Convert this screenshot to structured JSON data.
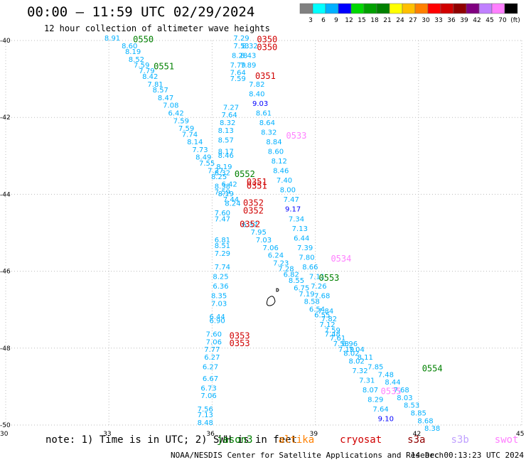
{
  "title": "00:00 – 11:59 UTC 02/29/2024",
  "subtitle": "12 hour collection of altimeter wave heights",
  "colorbar": {
    "ticks": [
      "3",
      "6",
      "9",
      "12",
      "15",
      "18",
      "21",
      "24",
      "27",
      "30",
      "33",
      "36",
      "39",
      "42",
      "45",
      "70",
      "(ft)"
    ],
    "colors": [
      "#808080",
      "#00ffff",
      "#00b0ff",
      "#0000ff",
      "#00d800",
      "#00a000",
      "#008000",
      "#ffff00",
      "#ffc000",
      "#ff8000",
      "#ff0000",
      "#d00000",
      "#900000",
      "#800080",
      "#c080ff",
      "#ff80ff",
      "#000000"
    ]
  },
  "note": {
    "prefix": "note: 1) Time is in UTC; 2) SWH is in feet",
    "satellites": [
      {
        "name": "jason3",
        "color": "#008000"
      },
      {
        "name": "altika",
        "color": "#ff8000"
      },
      {
        "name": "cryosat",
        "color": "#d00000"
      },
      {
        "name": "s3a",
        "color": "#900000"
      },
      {
        "name": "s3b",
        "color": "#c0a0ff"
      },
      {
        "name": "swot",
        "color": "#ff80ff"
      }
    ]
  },
  "footer": {
    "credit": "NOAA/NESDIS Center for Satellite Applications and Research",
    "generated": "14 Dec 00:13:23 UTC 2024"
  },
  "chart_data": {
    "type": "scatter",
    "xlim": [
      30,
      45
    ],
    "ylim": [
      -50,
      -40
    ],
    "x_ticks": [
      "30",
      "33",
      "36",
      "39",
      "42",
      "45"
    ],
    "y_ticks": [
      "-40",
      "-42",
      "-44",
      "-46",
      "-48",
      "-50"
    ],
    "grid": true,
    "wave_heights": [
      {
        "lon": 33.1,
        "lat": -40.0,
        "v": "8.91",
        "c": "#00b0ff"
      },
      {
        "lon": 33.6,
        "lat": -40.2,
        "v": "8.60",
        "c": "#00b0ff"
      },
      {
        "lon": 33.7,
        "lat": -40.35,
        "v": "8.19",
        "c": "#00b0ff"
      },
      {
        "lon": 33.8,
        "lat": -40.55,
        "v": "8.52",
        "c": "#00b0ff"
      },
      {
        "lon": 33.95,
        "lat": -40.7,
        "v": "7.59",
        "c": "#00b0ff"
      },
      {
        "lon": 34.1,
        "lat": -40.85,
        "v": "7.79",
        "c": "#00b0ff"
      },
      {
        "lon": 34.2,
        "lat": -41.0,
        "v": "8.42",
        "c": "#00b0ff"
      },
      {
        "lon": 34.35,
        "lat": -41.2,
        "v": "7.81",
        "c": "#00b0ff"
      },
      {
        "lon": 34.5,
        "lat": -41.35,
        "v": "8.57",
        "c": "#00b0ff"
      },
      {
        "lon": 34.65,
        "lat": -41.55,
        "v": "8.47",
        "c": "#00b0ff"
      },
      {
        "lon": 34.8,
        "lat": -41.75,
        "v": "7.08",
        "c": "#00b0ff"
      },
      {
        "lon": 34.95,
        "lat": -41.95,
        "v": "6.42",
        "c": "#00b0ff"
      },
      {
        "lon": 35.1,
        "lat": -42.15,
        "v": "7.59",
        "c": "#00b0ff"
      },
      {
        "lon": 35.25,
        "lat": -42.35,
        "v": "7.59",
        "c": "#00b0ff"
      },
      {
        "lon": 35.35,
        "lat": -42.5,
        "v": "7.74",
        "c": "#00b0ff"
      },
      {
        "lon": 35.5,
        "lat": -42.7,
        "v": "8.14",
        "c": "#00b0ff"
      },
      {
        "lon": 35.65,
        "lat": -42.9,
        "v": "7.73",
        "c": "#00b0ff"
      },
      {
        "lon": 35.75,
        "lat": -43.1,
        "v": "8.49",
        "c": "#00b0ff"
      },
      {
        "lon": 35.85,
        "lat": -43.25,
        "v": "7.55",
        "c": "#00b0ff"
      },
      {
        "lon": 36.1,
        "lat": -43.45,
        "v": "7.27",
        "c": "#00b0ff"
      },
      {
        "lon": 36.2,
        "lat": -43.6,
        "v": "8.25",
        "c": "#00b0ff"
      },
      {
        "lon": 36.5,
        "lat": -43.8,
        "v": "6.42",
        "c": "#00b0ff"
      },
      {
        "lon": 36.55,
        "lat": -44.2,
        "v": "7.44",
        "c": "#00b0ff"
      },
      {
        "lon": 36.6,
        "lat": -44.3,
        "v": "8.24",
        "c": "#00b0ff"
      },
      {
        "lon": 37.1,
        "lat": -44.85,
        "v": "6.37",
        "c": "#00b0ff"
      },
      {
        "lon": 37.35,
        "lat": -45.05,
        "v": "7.95",
        "c": "#00b0ff"
      },
      {
        "lon": 37.5,
        "lat": -45.25,
        "v": "7.03",
        "c": "#00b0ff"
      },
      {
        "lon": 37.7,
        "lat": -45.45,
        "v": "7.06",
        "c": "#00b0ff"
      },
      {
        "lon": 37.85,
        "lat": -45.65,
        "v": "6.24",
        "c": "#00b0ff"
      },
      {
        "lon": 38.0,
        "lat": -45.85,
        "v": "7.23",
        "c": "#00b0ff"
      },
      {
        "lon": 38.15,
        "lat": -46.0,
        "v": "7.28",
        "c": "#00b0ff"
      },
      {
        "lon": 38.3,
        "lat": -46.15,
        "v": "6.82",
        "c": "#00b0ff"
      },
      {
        "lon": 38.45,
        "lat": -46.3,
        "v": "8.55",
        "c": "#00b0ff"
      },
      {
        "lon": 38.6,
        "lat": -46.5,
        "v": "6.75",
        "c": "#00b0ff"
      },
      {
        "lon": 38.75,
        "lat": -46.65,
        "v": "7.19",
        "c": "#00b0ff"
      },
      {
        "lon": 38.9,
        "lat": -46.85,
        "v": "8.58",
        "c": "#00b0ff"
      },
      {
        "lon": 39.05,
        "lat": -47.05,
        "v": "6.54",
        "c": "#00b0ff"
      },
      {
        "lon": 39.2,
        "lat": -47.2,
        "v": "6.55",
        "c": "#00b0ff"
      },
      {
        "lon": 39.35,
        "lat": -47.45,
        "v": "7.12",
        "c": "#00b0ff"
      },
      {
        "lon": 39.5,
        "lat": -47.6,
        "v": "7.59",
        "c": "#00b0ff"
      },
      {
        "lon": 39.65,
        "lat": -47.8,
        "v": "7.61",
        "c": "#00b0ff"
      },
      {
        "lon": 39.75,
        "lat": -47.95,
        "v": "7.58",
        "c": "#00b0ff"
      },
      {
        "lon": 39.9,
        "lat": -48.1,
        "v": "7.19",
        "c": "#00b0ff"
      },
      {
        "lon": 40.05,
        "lat": -48.2,
        "v": "8.02",
        "c": "#00b0ff"
      },
      {
        "lon": 40.2,
        "lat": -48.4,
        "v": "8.02",
        "c": "#00b0ff"
      },
      {
        "lon": 40.3,
        "lat": -48.65,
        "v": "7.32",
        "c": "#00b0ff"
      },
      {
        "lon": 40.5,
        "lat": -48.9,
        "v": "7.31",
        "c": "#00b0ff"
      },
      {
        "lon": 40.6,
        "lat": -49.15,
        "v": "8.07",
        "c": "#00b0ff"
      },
      {
        "lon": 40.75,
        "lat": -49.4,
        "v": "8.29",
        "c": "#00b0ff"
      },
      {
        "lon": 40.9,
        "lat": -49.65,
        "v": "7.64",
        "c": "#00b0ff"
      },
      {
        "lon": 41.05,
        "lat": -49.9,
        "v": "9.10",
        "c": "#0000ff"
      },
      {
        "lon": 40.0,
        "lat": -47.95,
        "v": "6.96",
        "c": "#00b0ff"
      },
      {
        "lon": 40.2,
        "lat": -48.1,
        "v": "7.04",
        "c": "#00b0ff"
      },
      {
        "lon": 40.45,
        "lat": -48.3,
        "v": "8.11",
        "c": "#00b0ff"
      },
      {
        "lon": 40.75,
        "lat": -48.55,
        "v": "7.85",
        "c": "#00b0ff"
      },
      {
        "lon": 41.05,
        "lat": -48.75,
        "v": "7.48",
        "c": "#00b0ff"
      },
      {
        "lon": 41.25,
        "lat": -48.95,
        "v": "8.44",
        "c": "#00b0ff"
      },
      {
        "lon": 41.5,
        "lat": -49.15,
        "v": "7.68",
        "c": "#00b0ff"
      },
      {
        "lon": 41.6,
        "lat": -49.35,
        "v": "8.03",
        "c": "#00b0ff"
      },
      {
        "lon": 41.8,
        "lat": -49.55,
        "v": "8.53",
        "c": "#00b0ff"
      },
      {
        "lon": 42.0,
        "lat": -49.75,
        "v": "8.85",
        "c": "#00b0ff"
      },
      {
        "lon": 42.2,
        "lat": -49.95,
        "v": "8.68",
        "c": "#00b0ff"
      },
      {
        "lon": 42.4,
        "lat": -50.15,
        "v": "8.38",
        "c": "#00b0ff"
      },
      {
        "lon": 36.85,
        "lat": -40.0,
        "v": "7.29",
        "c": "#00b0ff"
      },
      {
        "lon": 36.85,
        "lat": -40.2,
        "v": "7.53",
        "c": "#00b0ff"
      },
      {
        "lon": 37.1,
        "lat": -40.2,
        "v": "8.32",
        "c": "#00b0ff"
      },
      {
        "lon": 36.8,
        "lat": -40.45,
        "v": "8.28",
        "c": "#00b0ff"
      },
      {
        "lon": 37.05,
        "lat": -40.45,
        "v": "8.43",
        "c": "#00b0ff"
      },
      {
        "lon": 36.75,
        "lat": -40.7,
        "v": "7.79",
        "c": "#00b0ff"
      },
      {
        "lon": 37.05,
        "lat": -40.7,
        "v": "7.89",
        "c": "#00b0ff"
      },
      {
        "lon": 36.75,
        "lat": -40.9,
        "v": "7.64",
        "c": "#00b0ff"
      },
      {
        "lon": 36.75,
        "lat": -41.05,
        "v": "7.59",
        "c": "#00b0ff"
      },
      {
        "lon": 37.3,
        "lat": -41.2,
        "v": "7.82",
        "c": "#00b0ff"
      },
      {
        "lon": 37.3,
        "lat": -41.45,
        "v": "8.40",
        "c": "#00b0ff"
      },
      {
        "lon": 37.4,
        "lat": -41.7,
        "v": "9.03",
        "c": "#0000ff"
      },
      {
        "lon": 37.5,
        "lat": -41.95,
        "v": "8.61",
        "c": "#00b0ff"
      },
      {
        "lon": 37.6,
        "lat": -42.2,
        "v": "8.64",
        "c": "#00b0ff"
      },
      {
        "lon": 37.65,
        "lat": -42.45,
        "v": "8.32",
        "c": "#00b0ff"
      },
      {
        "lon": 37.8,
        "lat": -42.7,
        "v": "8.84",
        "c": "#00b0ff"
      },
      {
        "lon": 37.85,
        "lat": -42.95,
        "v": "8.60",
        "c": "#00b0ff"
      },
      {
        "lon": 37.95,
        "lat": -43.2,
        "v": "8.12",
        "c": "#00b0ff"
      },
      {
        "lon": 38.0,
        "lat": -43.45,
        "v": "8.46",
        "c": "#00b0ff"
      },
      {
        "lon": 38.1,
        "lat": -43.7,
        "v": "7.40",
        "c": "#00b0ff"
      },
      {
        "lon": 38.2,
        "lat": -43.95,
        "v": "8.00",
        "c": "#00b0ff"
      },
      {
        "lon": 38.3,
        "lat": -44.2,
        "v": "7.47",
        "c": "#00b0ff"
      },
      {
        "lon": 38.35,
        "lat": -44.45,
        "v": "9.17",
        "c": "#0000ff"
      },
      {
        "lon": 38.45,
        "lat": -44.7,
        "v": "7.34",
        "c": "#00b0ff"
      },
      {
        "lon": 38.55,
        "lat": -44.95,
        "v": "7.13",
        "c": "#00b0ff"
      },
      {
        "lon": 38.6,
        "lat": -45.2,
        "v": "6.44",
        "c": "#00b0ff"
      },
      {
        "lon": 38.7,
        "lat": -45.45,
        "v": "7.39",
        "c": "#00b0ff"
      },
      {
        "lon": 38.75,
        "lat": -45.7,
        "v": "7.80",
        "c": "#00b0ff"
      },
      {
        "lon": 38.85,
        "lat": -45.95,
        "v": "8.66",
        "c": "#00b0ff"
      },
      {
        "lon": 39.05,
        "lat": -46.2,
        "v": "7.11",
        "c": "#00b0ff"
      },
      {
        "lon": 39.1,
        "lat": -46.45,
        "v": "7.26",
        "c": "#00b0ff"
      },
      {
        "lon": 39.2,
        "lat": -46.7,
        "v": "7.68",
        "c": "#00b0ff"
      },
      {
        "lon": 39.3,
        "lat": -47.1,
        "v": "7.84",
        "c": "#00b0ff"
      },
      {
        "lon": 39.4,
        "lat": -47.3,
        "v": "7.82",
        "c": "#00b0ff"
      },
      {
        "lon": 39.5,
        "lat": -47.7,
        "v": "7.48",
        "c": "#00b0ff"
      },
      {
        "lon": 36.5,
        "lat": -42.0,
        "v": "7.64",
        "c": "#00b0ff"
      },
      {
        "lon": 36.55,
        "lat": -41.8,
        "v": "7.27",
        "c": "#00b0ff"
      },
      {
        "lon": 36.45,
        "lat": -42.2,
        "v": "8.32",
        "c": "#00b0ff"
      },
      {
        "lon": 36.4,
        "lat": -42.4,
        "v": "8.13",
        "c": "#00b0ff"
      },
      {
        "lon": 36.4,
        "lat": -42.65,
        "v": "8.57",
        "c": "#00b0ff"
      },
      {
        "lon": 36.4,
        "lat": -42.95,
        "v": "8.17",
        "c": "#00b0ff"
      },
      {
        "lon": 36.4,
        "lat": -43.05,
        "v": "8.46",
        "c": "#00b0ff"
      },
      {
        "lon": 36.35,
        "lat": -43.35,
        "v": "8.19",
        "c": "#00b0ff"
      },
      {
        "lon": 36.3,
        "lat": -43.5,
        "v": "8.32",
        "c": "#00b0ff"
      },
      {
        "lon": 36.3,
        "lat": -43.85,
        "v": "8.38",
        "c": "#00b0ff"
      },
      {
        "lon": 36.3,
        "lat": -44.0,
        "v": "7.59",
        "c": "#00b0ff"
      },
      {
        "lon": 36.4,
        "lat": -44.05,
        "v": "8.19",
        "c": "#00b0ff"
      },
      {
        "lon": 36.3,
        "lat": -44.55,
        "v": "7.60",
        "c": "#00b0ff"
      },
      {
        "lon": 36.3,
        "lat": -44.7,
        "v": "7.47",
        "c": "#00b0ff"
      },
      {
        "lon": 36.3,
        "lat": -45.25,
        "v": "6.81",
        "c": "#00b0ff"
      },
      {
        "lon": 36.3,
        "lat": -45.4,
        "v": "8.51",
        "c": "#00b0ff"
      },
      {
        "lon": 36.3,
        "lat": -45.6,
        "v": "7.29",
        "c": "#00b0ff"
      },
      {
        "lon": 36.3,
        "lat": -45.95,
        "v": "7.74",
        "c": "#00b0ff"
      },
      {
        "lon": 36.25,
        "lat": -46.2,
        "v": "8.25",
        "c": "#00b0ff"
      },
      {
        "lon": 36.25,
        "lat": -46.45,
        "v": "6.36",
        "c": "#00b0ff"
      },
      {
        "lon": 36.2,
        "lat": -46.7,
        "v": "8.35",
        "c": "#00b0ff"
      },
      {
        "lon": 36.2,
        "lat": -46.9,
        "v": "7.03",
        "c": "#00b0ff"
      },
      {
        "lon": 36.15,
        "lat": -47.25,
        "v": "6.44",
        "c": "#00b0ff"
      },
      {
        "lon": 36.15,
        "lat": -47.35,
        "v": "6.90",
        "c": "#00b0ff"
      },
      {
        "lon": 36.05,
        "lat": -47.7,
        "v": "7.60",
        "c": "#00b0ff"
      },
      {
        "lon": 36.05,
        "lat": -47.9,
        "v": "7.06",
        "c": "#00b0ff"
      },
      {
        "lon": 36.0,
        "lat": -48.1,
        "v": "7.77",
        "c": "#00b0ff"
      },
      {
        "lon": 36.0,
        "lat": -48.3,
        "v": "6.27",
        "c": "#00b0ff"
      },
      {
        "lon": 35.95,
        "lat": -48.55,
        "v": "6.27",
        "c": "#00b0ff"
      },
      {
        "lon": 35.95,
        "lat": -48.85,
        "v": "6.67",
        "c": "#00b0ff"
      },
      {
        "lon": 35.9,
        "lat": -49.1,
        "v": "6.73",
        "c": "#00b0ff"
      },
      {
        "lon": 35.9,
        "lat": -49.3,
        "v": "7.06",
        "c": "#00b0ff"
      },
      {
        "lon": 35.8,
        "lat": -49.65,
        "v": "7.56",
        "c": "#00b0ff"
      },
      {
        "lon": 35.8,
        "lat": -49.8,
        "v": "7.13",
        "c": "#00b0ff"
      },
      {
        "lon": 35.8,
        "lat": -50.0,
        "v": "8.48",
        "c": "#00b0ff"
      }
    ],
    "time_labels": [
      {
        "lon": 34.0,
        "lat": -40.05,
        "v": "0550",
        "c": "#008000"
      },
      {
        "lon": 34.6,
        "lat": -40.75,
        "v": "0551",
        "c": "#008000"
      },
      {
        "lon": 37.6,
        "lat": -40.05,
        "v": "0350",
        "c": "#d00000"
      },
      {
        "lon": 37.6,
        "lat": -40.25,
        "v": "0350",
        "c": "#d00000"
      },
      {
        "lon": 37.55,
        "lat": -41.0,
        "v": "0351",
        "c": "#d00000"
      },
      {
        "lon": 38.45,
        "lat": -42.55,
        "v": "0533",
        "c": "#ff80ff"
      },
      {
        "lon": 36.95,
        "lat": -43.55,
        "v": "0552",
        "c": "#008000"
      },
      {
        "lon": 37.3,
        "lat": -43.75,
        "v": "0351",
        "c": "#d00000"
      },
      {
        "lon": 37.3,
        "lat": -43.85,
        "v": "0351",
        "c": "#d00000"
      },
      {
        "lon": 37.2,
        "lat": -44.3,
        "v": "0352",
        "c": "#d00000"
      },
      {
        "lon": 37.2,
        "lat": -44.5,
        "v": "0352",
        "c": "#d00000"
      },
      {
        "lon": 37.1,
        "lat": -44.85,
        "v": "0352",
        "c": "#d00000"
      },
      {
        "lon": 39.75,
        "lat": -45.75,
        "v": "0534",
        "c": "#ff80ff"
      },
      {
        "lon": 39.4,
        "lat": -46.25,
        "v": "0553",
        "c": "#008000"
      },
      {
        "lon": 36.8,
        "lat": -47.75,
        "v": "0353",
        "c": "#d00000"
      },
      {
        "lon": 36.8,
        "lat": -47.95,
        "v": "0353",
        "c": "#d00000"
      },
      {
        "lon": 42.4,
        "lat": -48.6,
        "v": "0554",
        "c": "#008000"
      },
      {
        "lon": 41.2,
        "lat": -49.2,
        "v": "0535",
        "c": "#ff80ff"
      }
    ]
  }
}
